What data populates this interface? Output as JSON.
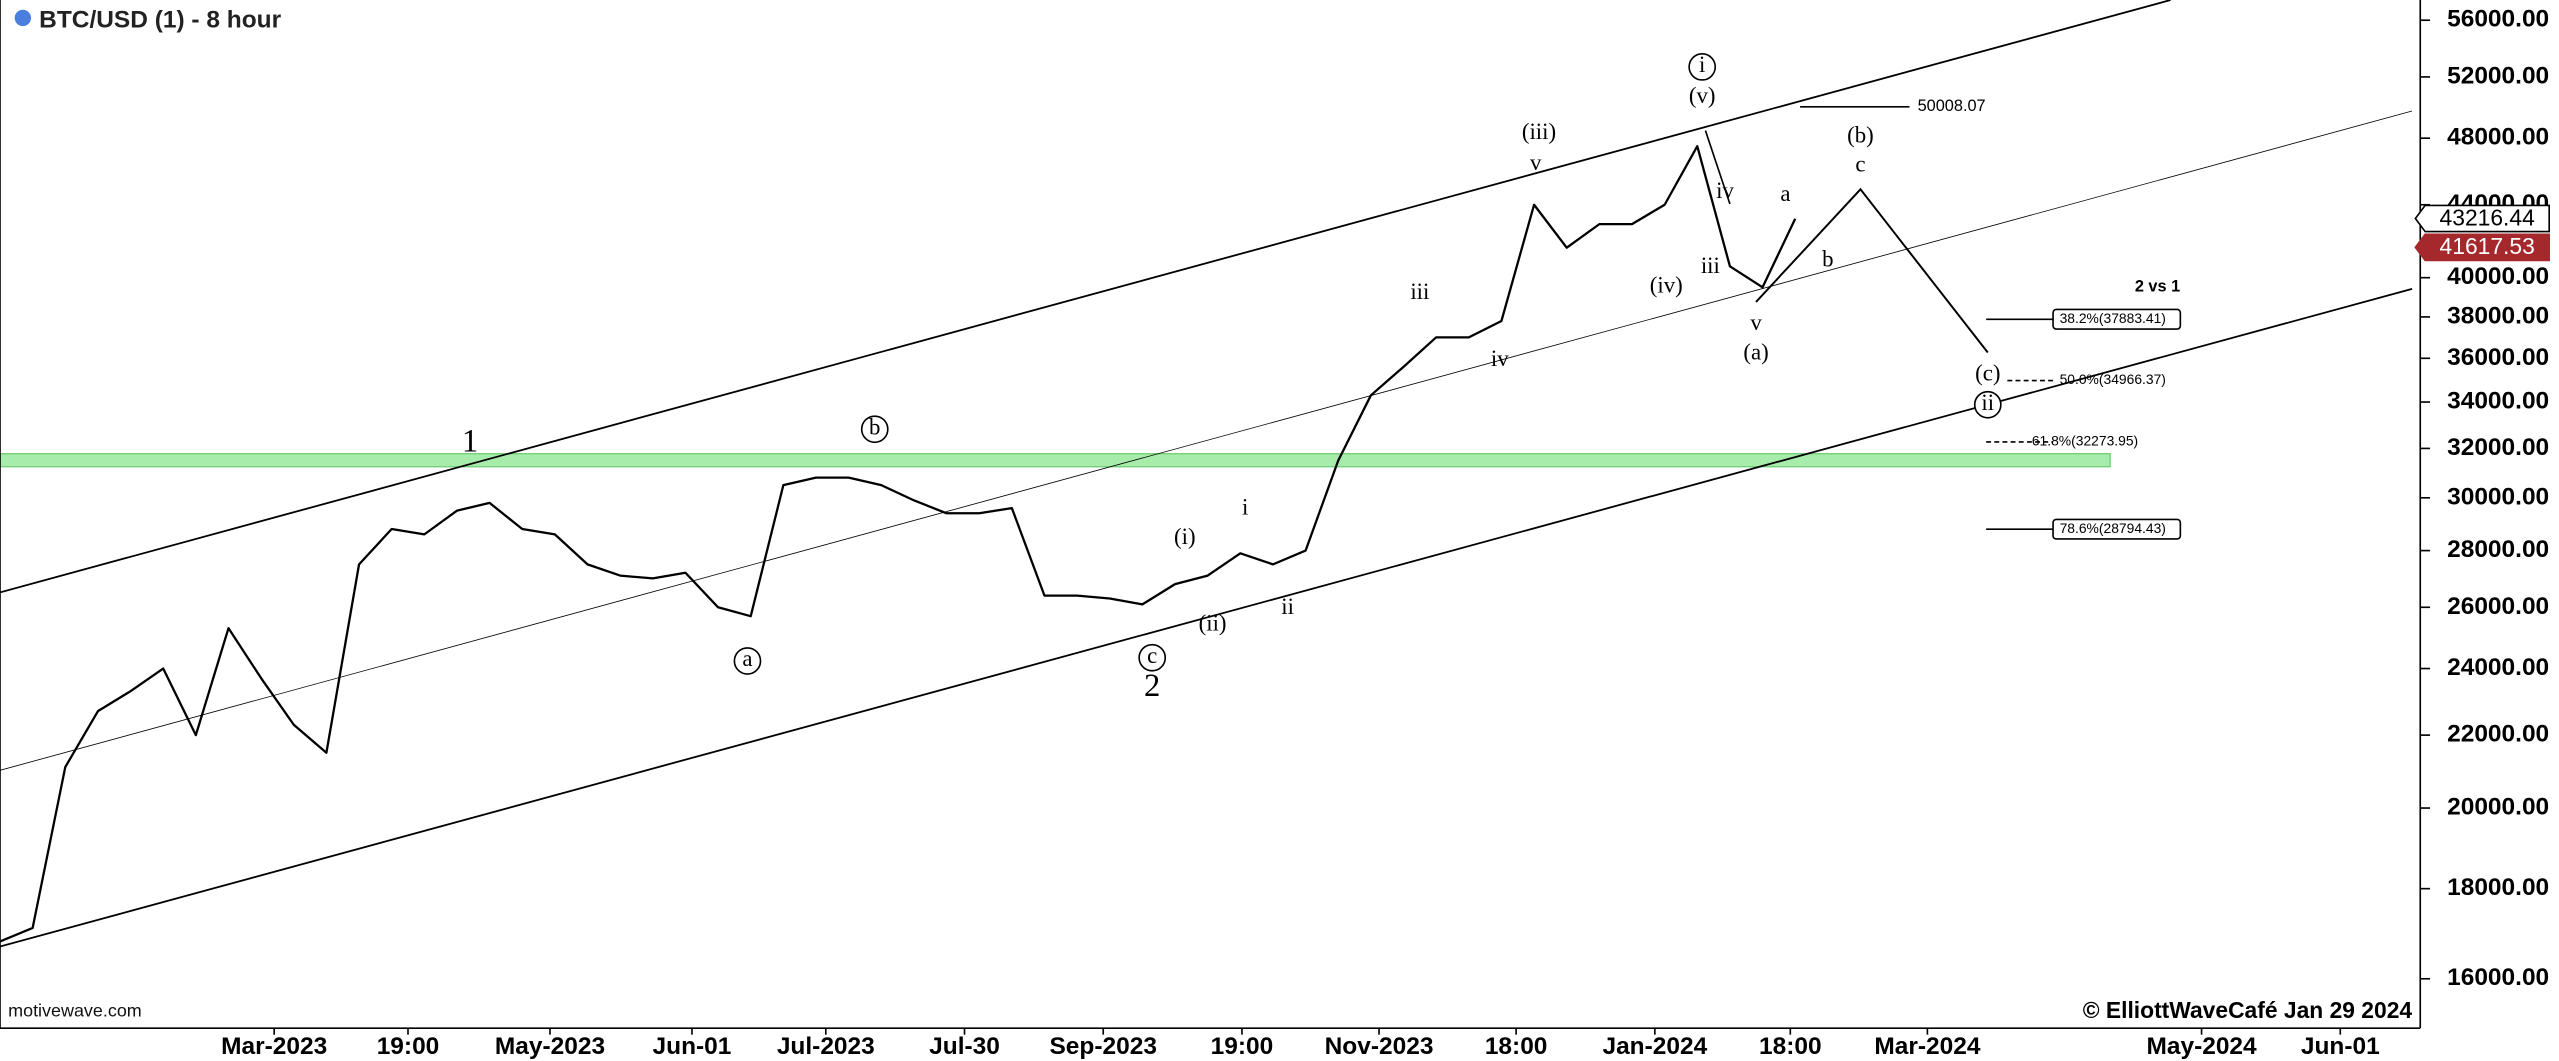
{
  "chart_data": {
    "type": "line",
    "title": "BTC/USD (1) - 8 hour",
    "color": "#000000",
    "log_scale": true,
    "values": [
      16800,
      17100,
      21100,
      22700,
      23300,
      24000,
      22000,
      25300,
      23700,
      22300,
      21500,
      27500,
      28800,
      28600,
      29500,
      29800,
      28800,
      28600,
      27500,
      27100,
      27000,
      27200,
      26000,
      25700,
      30500,
      30800,
      30800,
      30500,
      29900,
      29400,
      29400,
      29600,
      26400,
      26400,
      26300,
      26100,
      26800,
      27100,
      27900,
      27500,
      28000,
      31500,
      34300,
      35600,
      37000,
      37000,
      37800,
      44000,
      41600,
      42900,
      42900,
      44000,
      47500,
      40600,
      39500,
      43200
    ],
    "ylim": [
      15000,
      57500
    ],
    "yticks": [
      {
        "value": 16000,
        "label": "16000.00"
      },
      {
        "value": 18000,
        "label": "18000.00"
      },
      {
        "value": 20000,
        "label": "20000.00"
      },
      {
        "value": 22000,
        "label": "22000.00"
      },
      {
        "value": 24000,
        "label": "24000.00"
      },
      {
        "value": 26000,
        "label": "26000.00"
      },
      {
        "value": 28000,
        "label": "28000.00"
      },
      {
        "value": 30000,
        "label": "30000.00"
      },
      {
        "value": 32000,
        "label": "32000.00"
      },
      {
        "value": 34000,
        "label": "34000.00"
      },
      {
        "value": 36000,
        "label": "36000.00"
      },
      {
        "value": 38000,
        "label": "38000.00"
      },
      {
        "value": 40000,
        "label": "40000.00"
      },
      {
        "value": 44000,
        "label": "44000.00"
      },
      {
        "value": 48000,
        "label": "48000.00"
      },
      {
        "value": 52000,
        "label": "52000.00"
      },
      {
        "value": 56000,
        "label": "56000.00"
      }
    ],
    "x_labels": [
      "Mar-2023",
      "19:00",
      "May-2023",
      "Jun-01",
      "Jul-2023",
      "Jul-30",
      "Sep-2023",
      "19:00",
      "Nov-2023",
      "18:00",
      "Jan-2024",
      "18:00",
      "Mar-2024",
      "May-2024",
      "Jun-01"
    ],
    "last_prices": [
      {
        "value": 43216.44,
        "label": "43216.44",
        "fill": "#ffffff",
        "text_color": "#000000"
      },
      {
        "value": 41617.53,
        "label": "41617.53",
        "fill": "#a4282c",
        "text_color": "#ffffff"
      }
    ],
    "levels": [
      {
        "value": 50008.07,
        "label": "50008.07",
        "style": "plain"
      },
      {
        "value": 37883.41,
        "label": "38.2%(37883.41)",
        "style": "box"
      },
      {
        "value": 34966.37,
        "label": "50.0%(34966.37)",
        "style": "dashed"
      },
      {
        "value": 32273.95,
        "label": "61.8%(32273.95)",
        "style": "dashed"
      },
      {
        "value": 28794.43,
        "label": "78.6%(28794.43)",
        "style": "box"
      }
    ],
    "annotations": [
      {
        "text": "1",
        "circled": false
      },
      {
        "text": "b",
        "circled": true
      },
      {
        "text": "a",
        "circled": true
      },
      {
        "text": "c",
        "circled": true
      },
      {
        "text": "2",
        "circled": false
      },
      {
        "text": "(i)",
        "circled": false
      },
      {
        "text": "(ii)",
        "circled": false
      },
      {
        "text": "i",
        "circled": false
      },
      {
        "text": "ii",
        "circled": false
      },
      {
        "text": "iii",
        "circled": false
      },
      {
        "text": "iv",
        "circled": false
      },
      {
        "text": "(iii)",
        "circled": false
      },
      {
        "text": "v",
        "circled": false
      },
      {
        "text": "(iv)",
        "circled": false
      },
      {
        "text": "iii",
        "circled": false
      },
      {
        "text": "iv",
        "circled": false
      },
      {
        "text": "i",
        "circled": true
      },
      {
        "text": "(v)",
        "circled": false
      },
      {
        "text": "v",
        "circled": false
      },
      {
        "text": "(a)",
        "circled": false
      },
      {
        "text": "a",
        "circled": false
      },
      {
        "text": "b",
        "circled": false
      },
      {
        "text": "(b)",
        "circled": false
      },
      {
        "text": "c",
        "circled": false
      },
      {
        "text": "(c)",
        "circled": false
      },
      {
        "text": "ii",
        "circled": true
      },
      {
        "text": "2 vs 1",
        "circled": false
      }
    ],
    "source": "motivewave.com",
    "copyright": "© ElliottWaveCafé Jan 29 2024"
  }
}
